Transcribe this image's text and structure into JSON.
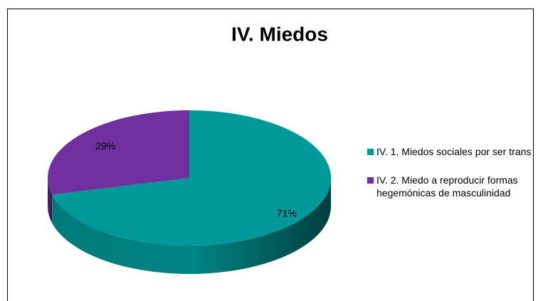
{
  "chart_data": {
    "type": "pie",
    "title": "IV. Miedos",
    "categories": [
      "IV. 1. Miedos sociales por ser trans",
      "IV. 2. Miedo a reproducir formas hegemónicas de masculinidad"
    ],
    "values": [
      71,
      29
    ],
    "value_labels": [
      "71%",
      "29%"
    ],
    "colors": [
      "#009999",
      "#7030a0"
    ],
    "legend": "right"
  }
}
